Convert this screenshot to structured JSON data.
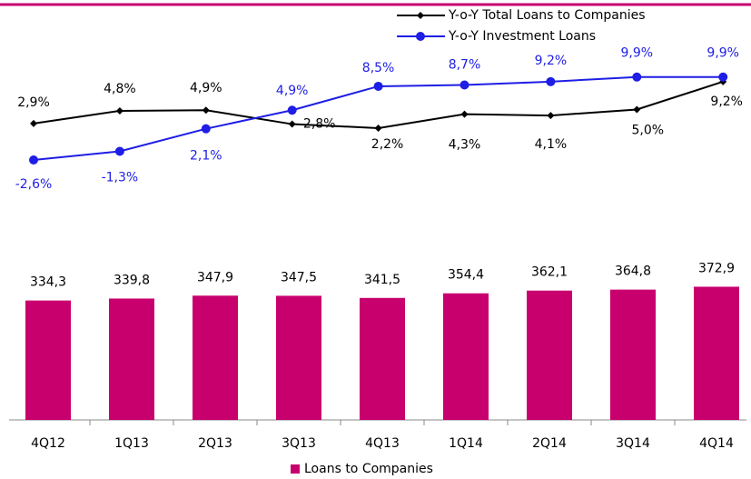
{
  "chart_data": [
    {
      "type": "bar",
      "categories": [
        "4Q12",
        "1Q13",
        "2Q13",
        "3Q13",
        "4Q13",
        "1Q14",
        "2Q14",
        "3Q14",
        "4Q14"
      ],
      "series": [
        {
          "name": "Loans to Companies",
          "color": "#c8006e",
          "values": [
            334.3,
            339.8,
            347.9,
            347.5,
            341.5,
            354.4,
            362.1,
            364.8,
            372.9
          ],
          "value_labels": [
            "334,3",
            "339,8",
            "347,9",
            "347,5",
            "341,5",
            "354,4",
            "362,1",
            "364,8",
            "372,9"
          ]
        }
      ]
    },
    {
      "type": "line",
      "series": [
        {
          "name": "Y-o-Y Total Loans to Companies",
          "color": "#000000",
          "values": [
            2.9,
            4.8,
            4.9,
            2.8,
            2.2,
            4.3,
            4.1,
            5.0,
            9.2
          ],
          "value_labels": [
            "2,9%",
            "4,8%",
            "4,9%",
            "2,8%",
            "2,2%",
            "4,3%",
            "4,1%",
            "5,0%",
            "9,2%"
          ]
        },
        {
          "name": "Y-o-Y Investment Loans",
          "color": "#1e1ee6",
          "values": [
            -2.6,
            -1.3,
            2.1,
            4.9,
            8.5,
            8.7,
            9.2,
            9.9,
            9.9
          ],
          "value_labels": [
            "-2,6%",
            "-1,3%",
            "2,1%",
            "4,9%",
            "8,5%",
            "8,7%",
            "9,2%",
            "9,9%",
            "9,9%"
          ]
        }
      ]
    }
  ]
}
